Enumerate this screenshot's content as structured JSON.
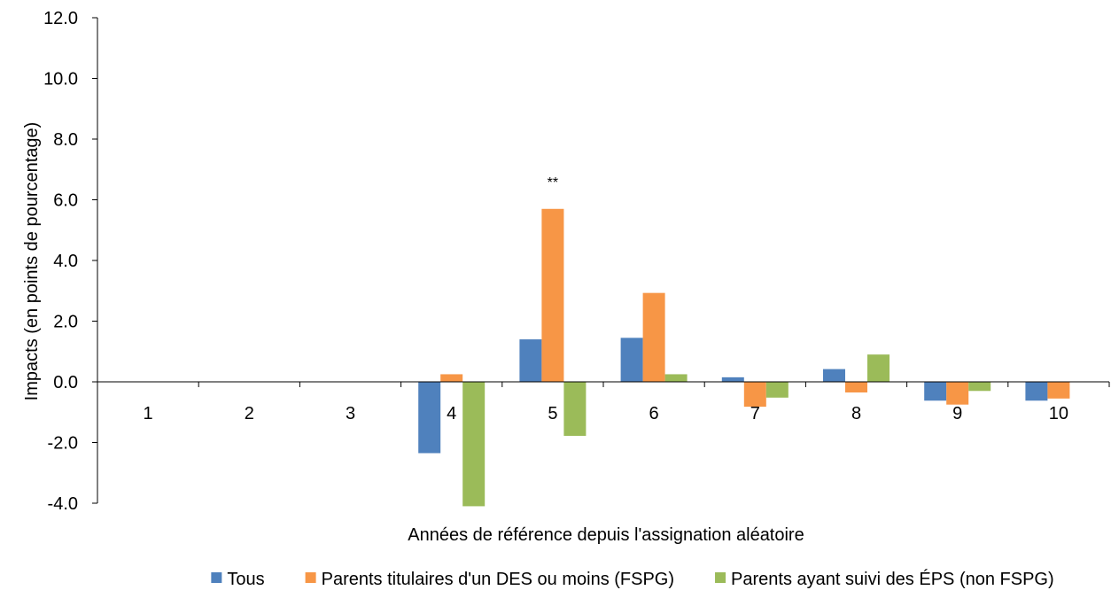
{
  "chart_data": {
    "type": "bar",
    "categories": [
      "1",
      "2",
      "3",
      "4",
      "5",
      "6",
      "7",
      "8",
      "9",
      "10"
    ],
    "series": [
      {
        "name": "Tous",
        "color": "#4F81BD",
        "values": [
          0,
          0,
          0,
          -2.35,
          1.4,
          1.45,
          0.15,
          0.42,
          -0.62,
          -0.62
        ]
      },
      {
        "name": "Parents titulaires d'un DES ou moins (FSPG)",
        "color": "#F79646",
        "values": [
          0,
          0,
          0,
          0.25,
          5.7,
          2.93,
          -0.82,
          -0.35,
          -0.75,
          -0.55
        ]
      },
      {
        "name": "Parents ayant suivi des ÉPS (non FSPG)",
        "color": "#9BBB59",
        "values": [
          0,
          0,
          0,
          -4.1,
          -1.78,
          0.25,
          -0.52,
          0.9,
          -0.3,
          0
        ]
      }
    ],
    "ylim": [
      -4.0,
      12.0
    ],
    "yticks": [
      "-4.0",
      "-2.0",
      "0.0",
      "2.0",
      "4.0",
      "6.0",
      "8.0",
      "10.0",
      "12.0"
    ],
    "ytick_values": [
      -4,
      -2,
      0,
      2,
      4,
      6,
      8,
      10,
      12
    ],
    "xlabel": "Années de référence depuis l'assignation aléatoire",
    "ylabel": "Impacts (en points de pourcentage)",
    "annotations": [
      {
        "text": "**",
        "category": "5",
        "series": 1
      }
    ],
    "legend_position": "bottom",
    "grid": false
  }
}
